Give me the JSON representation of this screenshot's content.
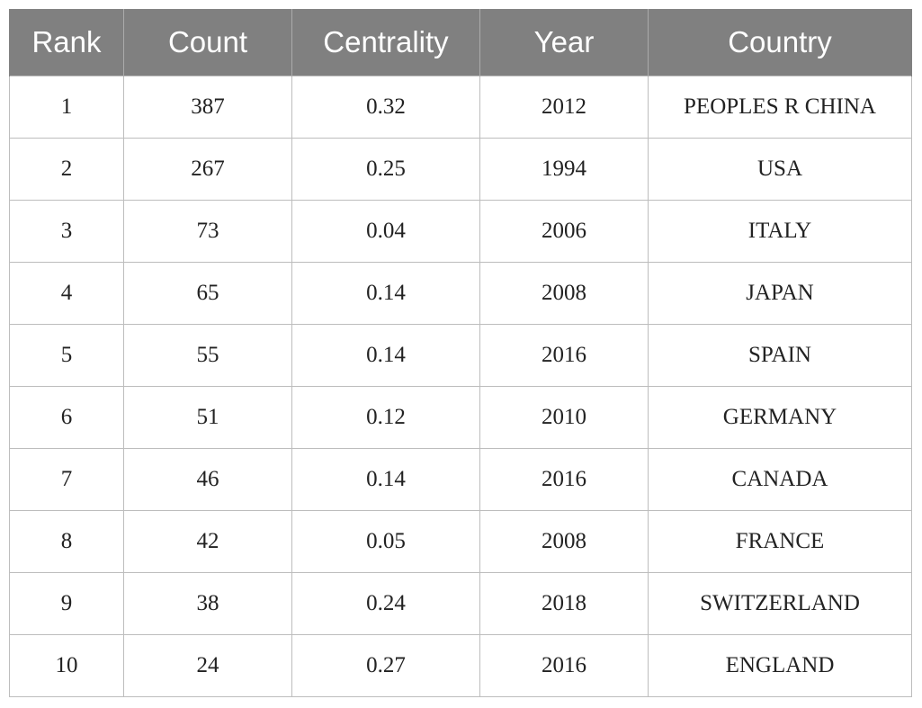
{
  "table": {
    "headers": [
      "Rank",
      "Count",
      "Centrality",
      "Year",
      "Country"
    ],
    "rows": [
      [
        "1",
        "387",
        "0.32",
        "2012",
        "PEOPLES R CHINA"
      ],
      [
        "2",
        "267",
        "0.25",
        "1994",
        "USA"
      ],
      [
        "3",
        "73",
        "0.04",
        "2006",
        "ITALY"
      ],
      [
        "4",
        "65",
        "0.14",
        "2008",
        "JAPAN"
      ],
      [
        "5",
        "55",
        "0.14",
        "2016",
        "SPAIN"
      ],
      [
        "6",
        "51",
        "0.12",
        "2010",
        "GERMANY"
      ],
      [
        "7",
        "46",
        "0.14",
        "2016",
        "CANADA"
      ],
      [
        "8",
        "42",
        "0.05",
        "2008",
        "FRANCE"
      ],
      [
        "9",
        "38",
        "0.24",
        "2018",
        "SWITZERLAND"
      ],
      [
        "10",
        "24",
        "0.27",
        "2016",
        "ENGLAND"
      ]
    ],
    "colors": {
      "header_bg": "#808080",
      "header_text": "#ffffff",
      "grid_line": "#bdbdbd",
      "cell_text": "#222222"
    }
  }
}
